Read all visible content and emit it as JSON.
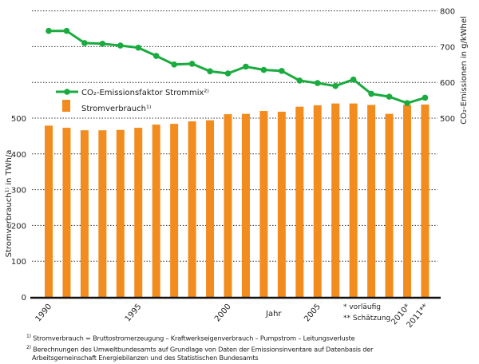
{
  "chart_data": {
    "type": "bar+line",
    "categories": [
      "1990",
      "1991",
      "1992",
      "1993",
      "1994",
      "1995",
      "1996",
      "1997",
      "1998",
      "1999",
      "2000",
      "2001",
      "2002",
      "2003",
      "2004",
      "2005",
      "2006",
      "2007",
      "2008",
      "2009",
      "2010",
      "2011"
    ],
    "xtick_labels": [
      "1990",
      "1995",
      "2000",
      "2005",
      "2010*",
      "2011**"
    ],
    "xtick_years": [
      "1990",
      "1995",
      "2000",
      "2005",
      "2010",
      "2011"
    ],
    "xlabel": "Jahr",
    "ylabel_left": "Stromverbrauch¹⁾ in TWh/a",
    "ylabel_right": "CO₂-Emissionen in g/kWhel",
    "ylim_left": [
      0,
      500
    ],
    "yticks_left": [
      0,
      100,
      200,
      300,
      400,
      500
    ],
    "ylim_right": [
      500,
      800
    ],
    "yticks_right": [
      500,
      600,
      700,
      800
    ],
    "grid": true,
    "legend_placement": "top-left",
    "series": [
      {
        "name": "CO₂-Emissionsfaktor Strommix²⁾",
        "type": "line",
        "axis": "right",
        "color": "#1aab3f",
        "values": [
          744,
          744,
          710,
          708,
          703,
          697,
          674,
          650,
          652,
          631,
          625,
          644,
          635,
          632,
          605,
          598,
          590,
          608,
          568,
          560,
          542,
          557
        ]
      },
      {
        "name": "Stromverbrauch¹⁾",
        "type": "bar",
        "axis": "left",
        "color": "#f28c1e",
        "values": [
          479,
          473,
          466,
          466,
          467,
          473,
          482,
          484,
          491,
          494,
          511,
          512,
          520,
          518,
          532,
          536,
          541,
          541,
          537,
          512,
          537,
          538
        ]
      }
    ],
    "notes": [
      "* vorläufig",
      "** Schätzung"
    ]
  },
  "footnotes": [
    {
      "mark": "1)",
      "text": "Stromverbrauch = Bruttostromerzeugung – Kraftwerkseigenverbrauch – Pumpstrom – Leitungsverluste"
    },
    {
      "mark": "2)",
      "text": "Berechnungen des Umweltbundesamts auf Grundlage von Daten der Emissionsinventare auf Datenbasis der"
    },
    {
      "mark": "",
      "text": "Arbeitsgemeinschaft Energiebilanzen und des Statistischen Bundesamts"
    }
  ]
}
